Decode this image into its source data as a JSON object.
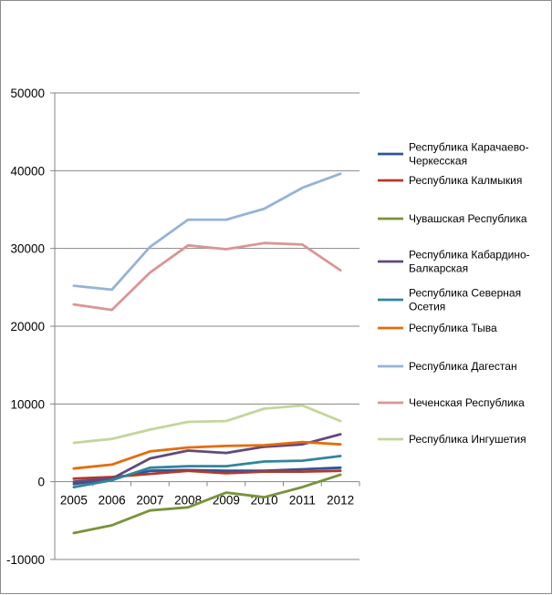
{
  "chart_data": {
    "type": "line",
    "title": "",
    "xlabel": "",
    "ylabel": "",
    "categories": [
      "2005",
      "2006",
      "2007",
      "2008",
      "2009",
      "2010",
      "2011",
      "2012"
    ],
    "ylim": [
      -10000,
      50000
    ],
    "yticks": [
      -10000,
      0,
      10000,
      20000,
      30000,
      40000,
      50000
    ],
    "grid": "horizontal",
    "legend_position": "right",
    "series": [
      {
        "name": "Республика Карачаево-Черкесская",
        "color": "#2f5597",
        "values": [
          -300,
          400,
          1400,
          1500,
          1400,
          1400,
          1600,
          1800
        ]
      },
      {
        "name": "Республика Калмыкия",
        "color": "#b03a2e",
        "values": [
          400,
          600,
          1000,
          1400,
          1100,
          1300,
          1300,
          1400
        ]
      },
      {
        "name": "Чувашская Республика",
        "color": "#77933c",
        "values": [
          -6600,
          -5600,
          -3700,
          -3300,
          -1400,
          -2000,
          -700,
          900
        ]
      },
      {
        "name": "Республика Кабардино-Балкарская",
        "color": "#604a7b",
        "values": [
          0,
          400,
          3000,
          4000,
          3700,
          4500,
          4800,
          6100
        ]
      },
      {
        "name": "Республика Северная Осетия",
        "color": "#31859c",
        "values": [
          -700,
          200,
          1800,
          2000,
          2000,
          2600,
          2700,
          3300
        ]
      },
      {
        "name": "Республика Тыва",
        "color": "#e46c0a",
        "values": [
          1700,
          2200,
          3900,
          4400,
          4600,
          4700,
          5100,
          4800
        ]
      },
      {
        "name": "Республика Дагестан",
        "color": "#95b3d7",
        "values": [
          25200,
          24700,
          30200,
          33700,
          33700,
          35100,
          37800,
          39600
        ]
      },
      {
        "name": "Чеченская Республика",
        "color": "#d99694",
        "values": [
          22800,
          22100,
          26900,
          30400,
          29900,
          30700,
          30500,
          27200
        ]
      },
      {
        "name": "Республика Ингушетия",
        "color": "#c3d69b",
        "values": [
          5000,
          5500,
          6700,
          7700,
          7800,
          9400,
          9800,
          7800
        ]
      }
    ],
    "legend_lines": [
      [
        "Республика Карачаево-",
        "Черкесская"
      ],
      [
        "Республика Калмыкия"
      ],
      [
        "Чувашская Республика"
      ],
      [
        " Республика Кабардино-",
        "Балкарская"
      ],
      [
        "Республика Северная",
        "Осетия"
      ],
      [
        "Республика Тыва"
      ],
      [
        "Республика Дагестан"
      ],
      [
        "Чеченская Республика"
      ],
      [
        "Республика Ингушетия"
      ]
    ]
  }
}
